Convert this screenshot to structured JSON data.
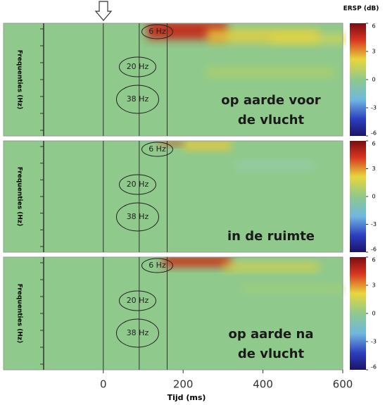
{
  "colorbar_label": "ERSP (dB)",
  "x_axis": {
    "label": "Tijd (ms)",
    "xlim": [
      -250,
      600
    ],
    "xticks": [
      0,
      200,
      400,
      600
    ]
  },
  "chart_data": [
    {
      "type": "heatmap",
      "ylabel": "Frequenties (Hz)",
      "label": [
        "op aarde voor",
        "de vlucht"
      ],
      "contours": [
        "6 Hz",
        "20 Hz",
        "38 Hz"
      ],
      "vlines": [
        0,
        90,
        160
      ],
      "clim": [
        -6,
        6
      ],
      "cticks": [
        -6,
        -3,
        0,
        3,
        6
      ]
    },
    {
      "type": "heatmap",
      "ylabel": "Frequenties (Hz)",
      "label": [
        "in de ruimte"
      ],
      "contours": [
        "6 Hz",
        "20 Hz",
        "38 Hz"
      ],
      "vlines": [
        0,
        90,
        160
      ],
      "clim": [
        -6,
        6
      ],
      "cticks": [
        -6,
        -3,
        0,
        3,
        6
      ]
    },
    {
      "type": "heatmap",
      "ylabel": "Frequenties (Hz)",
      "label": [
        "op aarde na",
        "de vlucht"
      ],
      "contours": [
        "6 Hz",
        "20 Hz",
        "38 Hz"
      ],
      "vlines": [
        0,
        90,
        160
      ],
      "clim": [
        -6,
        6
      ],
      "cticks": [
        -6,
        -3,
        0,
        3,
        6
      ]
    }
  ]
}
